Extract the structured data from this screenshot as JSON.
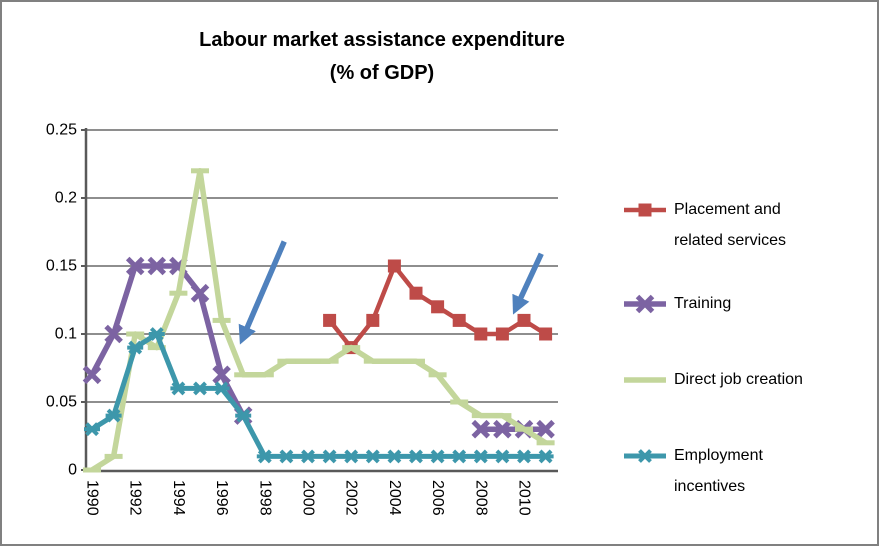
{
  "chart_data": {
    "type": "line",
    "title": "Labour market assistance expenditure",
    "subtitle": "(% of GDP)",
    "x": [
      "1990",
      "1991",
      "1992",
      "1993",
      "1994",
      "1995",
      "1996",
      "1997",
      "1998",
      "1999",
      "2000",
      "2001",
      "2002",
      "2003",
      "2004",
      "2005",
      "2006",
      "2007",
      "2008",
      "2009",
      "2010",
      "2011"
    ],
    "x_tick_labels": [
      "1990",
      "1992",
      "1994",
      "1996",
      "1998",
      "2000",
      "2002",
      "2004",
      "2006",
      "2008",
      "2010"
    ],
    "y_ticks": [
      0,
      0.05,
      0.1,
      0.15,
      0.2,
      0.25
    ],
    "y_tick_labels": [
      "0",
      "0.05",
      "0.1",
      "0.15",
      "0.2",
      "0.25"
    ],
    "ylim": [
      0,
      0.25
    ],
    "grid": "horizontal",
    "legend_position": "right",
    "series": [
      {
        "name": "Placement and related services",
        "color": "#BE4B48",
        "marker": "square",
        "line_width": 4.5,
        "values": [
          null,
          null,
          null,
          null,
          null,
          null,
          null,
          null,
          null,
          null,
          null,
          0.11,
          0.09,
          0.11,
          0.15,
          0.13,
          0.12,
          0.11,
          0.1,
          0.1,
          0.11,
          0.1
        ]
      },
      {
        "name": "Training",
        "color": "#7C63A2",
        "marker": "x",
        "line_width": 5.5,
        "values": [
          0.07,
          0.1,
          0.15,
          0.15,
          0.15,
          0.13,
          0.07,
          0.04,
          null,
          null,
          null,
          null,
          null,
          null,
          null,
          null,
          null,
          null,
          0.03,
          0.03,
          0.03,
          0.03
        ]
      },
      {
        "name": "Direct job creation",
        "color": "#C3D69B",
        "marker": "dash",
        "line_width": 5.5,
        "values": [
          0.0,
          0.01,
          0.1,
          0.09,
          0.13,
          0.22,
          0.11,
          0.07,
          0.07,
          0.08,
          0.08,
          0.08,
          0.09,
          0.08,
          0.08,
          0.08,
          0.07,
          0.05,
          0.04,
          0.04,
          0.03,
          0.02
        ]
      },
      {
        "name": "Employment incentives",
        "color": "#3D97AB",
        "marker": "asterisk",
        "line_width": 5,
        "values": [
          0.03,
          0.04,
          0.09,
          0.1,
          0.06,
          0.06,
          0.06,
          0.04,
          0.01,
          0.01,
          0.01,
          0.01,
          0.01,
          0.01,
          0.01,
          0.01,
          0.01,
          0.01,
          0.01,
          0.01,
          0.01,
          0.01
        ]
      }
    ],
    "annotations": [
      {
        "type": "arrow",
        "from_year": 1998.9,
        "from_value": 0.168,
        "to_year": 1996.95,
        "to_value": 0.096
      },
      {
        "type": "arrow",
        "from_year": 2010.8,
        "from_value": 0.159,
        "to_year": 2009.6,
        "to_value": 0.118
      }
    ],
    "style_colors": {
      "arrow_blue": "#4F81BD",
      "gridline": "#8E8E8E",
      "axis": "#595959",
      "border": "#808080",
      "title_text": "#000000"
    }
  },
  "legend": {
    "items": [
      {
        "label_lines": [
          "Placement and",
          "related services"
        ]
      },
      {
        "label_lines": [
          "Training"
        ]
      },
      {
        "label_lines": [
          "Direct job creation"
        ]
      },
      {
        "label_lines": [
          "Employment",
          "incentives"
        ]
      }
    ]
  }
}
